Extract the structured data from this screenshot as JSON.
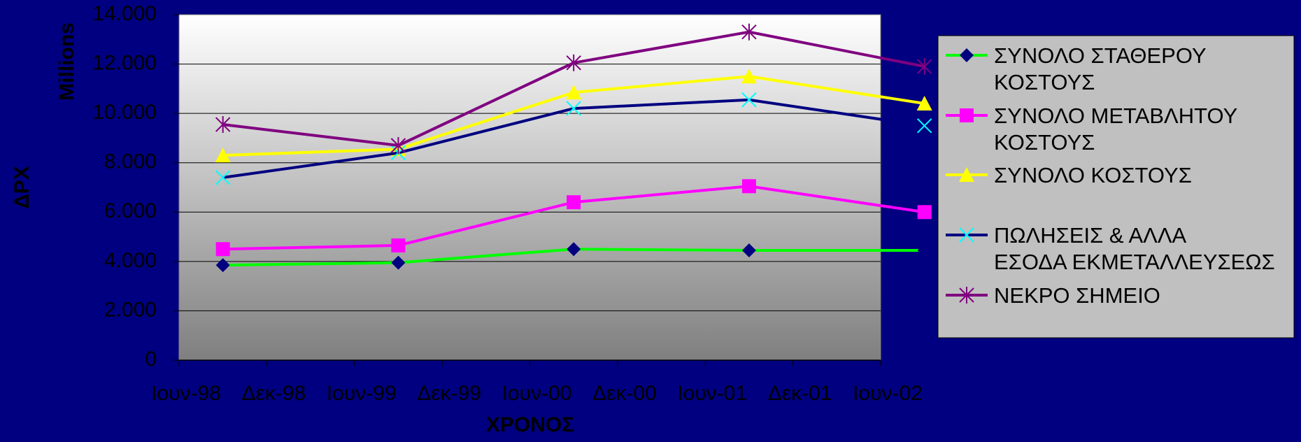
{
  "chart_data": {
    "type": "line",
    "xlabel": "ΧΡΟΝΟΣ",
    "ylabel": "ΔΡΧ",
    "yunit": "Millions",
    "ylim": [
      0,
      14000
    ],
    "yticks": [
      "0",
      "2.000",
      "4.000",
      "6.000",
      "8.000",
      "10.000",
      "12.000",
      "14.000"
    ],
    "xticks": [
      "Ιουν-98",
      "Δεκ-98",
      "Ιουν-99",
      "Δεκ-99",
      "Ιουν-00",
      "Δεκ-00",
      "Ιουν-01",
      "Δεκ-01",
      "Ιουν-02"
    ],
    "x": [
      "Ιουν-98",
      "Ιουν-99",
      "Ιουν-00",
      "Ιουν-01",
      "Ιουν-02"
    ],
    "grid": true,
    "legend_position": "right",
    "series": [
      {
        "name": "ΣΥΝΟΛΟ ΣΤΑΘΕΡΟΥ ΚΟΣΤΟΥΣ",
        "legend_lines": [
          "ΣΥΝΟΛΟ ΣΤΑΘΕΡΟΥ",
          "ΚΟΣΤΟΥΣ"
        ],
        "marker": "diamond",
        "line_color": "#00FF00",
        "marker_color": "#000080",
        "values": [
          3850,
          3950,
          4500,
          4450,
          4450
        ]
      },
      {
        "name": "ΣΥΝΟΛΟ ΜΕΤΑΒΛΗΤΟΥ ΚΟΣΤΟΥΣ",
        "legend_lines": [
          "ΣΥΝΟΛΟ ΜΕΤΑΒΛΗΤΟΥ",
          "ΚΟΣΤΟΥΣ"
        ],
        "marker": "square",
        "line_color": "#FF00FF",
        "marker_color": "#FF00FF",
        "values": [
          4500,
          4650,
          6400,
          7050,
          6000
        ]
      },
      {
        "name": "ΣΥΝΟΛΟ ΚΟΣΤΟΥΣ",
        "legend_lines": [
          "ΣΥΝΟΛΟ ΚΟΣΤΟΥΣ"
        ],
        "marker": "triangle",
        "line_color": "#FFFF00",
        "marker_color": "#FFFF00",
        "values": [
          8300,
          8550,
          10850,
          11500,
          10400
        ]
      },
      {
        "name": "ΠΩΛΗΣΕΙΣ & ΑΛΛΑ ΕΣΟΔΑ ΕΚΜΕΤΑΛΛΕΥΣΕΩΣ",
        "legend_lines": [
          "ΠΩΛΗΣΕΙΣ & ΑΛΛΑ",
          "ΕΣΟΔΑ ΕΚΜΕΤΑΛΛΕΥΣΕΩΣ"
        ],
        "marker": "x",
        "line_color": "#000080",
        "marker_color": "#00FFFF",
        "values": [
          7400,
          8400,
          10200,
          10550,
          9500
        ]
      },
      {
        "name": "ΝΕΚΡΟ ΣΗΜΕΙΟ",
        "legend_lines": [
          "ΝΕΚΡΟ ΣΗΜΕΙΟ"
        ],
        "marker": "star",
        "line_color": "#800080",
        "marker_color": "#800080",
        "values": [
          9550,
          8700,
          12050,
          13300,
          11900
        ]
      }
    ]
  },
  "colors": {
    "background": "#000080",
    "plot_top": "#FFFFFF",
    "plot_bottom": "#7F7F7F",
    "legend_bg": "#C0C0C0",
    "gridline": "#000000"
  }
}
